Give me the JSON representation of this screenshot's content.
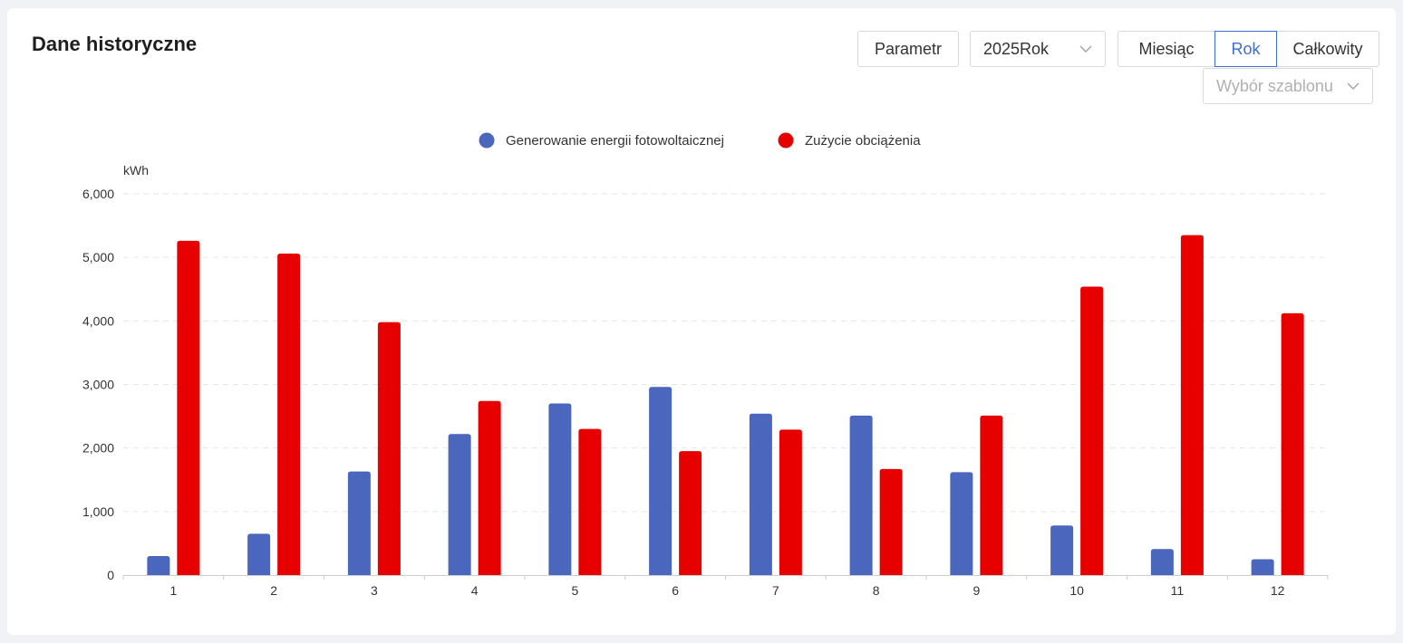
{
  "header": {
    "title": "Dane historyczne",
    "param_label": "Parametr",
    "year_value": "2025Rok",
    "template_placeholder": "Wybór szablonu"
  },
  "period_tabs": [
    {
      "label": "Miesiąc",
      "active": false
    },
    {
      "label": "Rok",
      "active": true
    },
    {
      "label": "Całkowity",
      "active": false
    }
  ],
  "chart_data": {
    "type": "bar",
    "title": "",
    "xlabel": "",
    "ylabel": "kWh",
    "ylim": [
      0,
      6000
    ],
    "y_ticks": [
      "0",
      "1,000",
      "2,000",
      "3,000",
      "4,000",
      "5,000",
      "6,000"
    ],
    "y_tick_values": [
      0,
      1000,
      2000,
      3000,
      4000,
      5000,
      6000
    ],
    "categories": [
      "1",
      "2",
      "3",
      "4",
      "5",
      "6",
      "7",
      "8",
      "9",
      "10",
      "11",
      "12"
    ],
    "grid": true,
    "legend_position": "top-center",
    "series": [
      {
        "name": "Generowanie energii fotowoltaicznej",
        "color": "#4a66bd",
        "values": [
          300,
          650,
          1630,
          2220,
          2700,
          2960,
          2540,
          2510,
          1620,
          780,
          410,
          250
        ]
      },
      {
        "name": "Zużycie obciążenia",
        "color": "#e60000",
        "values": [
          5260,
          5060,
          3980,
          2740,
          2300,
          1950,
          2290,
          1670,
          2510,
          4540,
          5350,
          4120
        ]
      }
    ]
  }
}
